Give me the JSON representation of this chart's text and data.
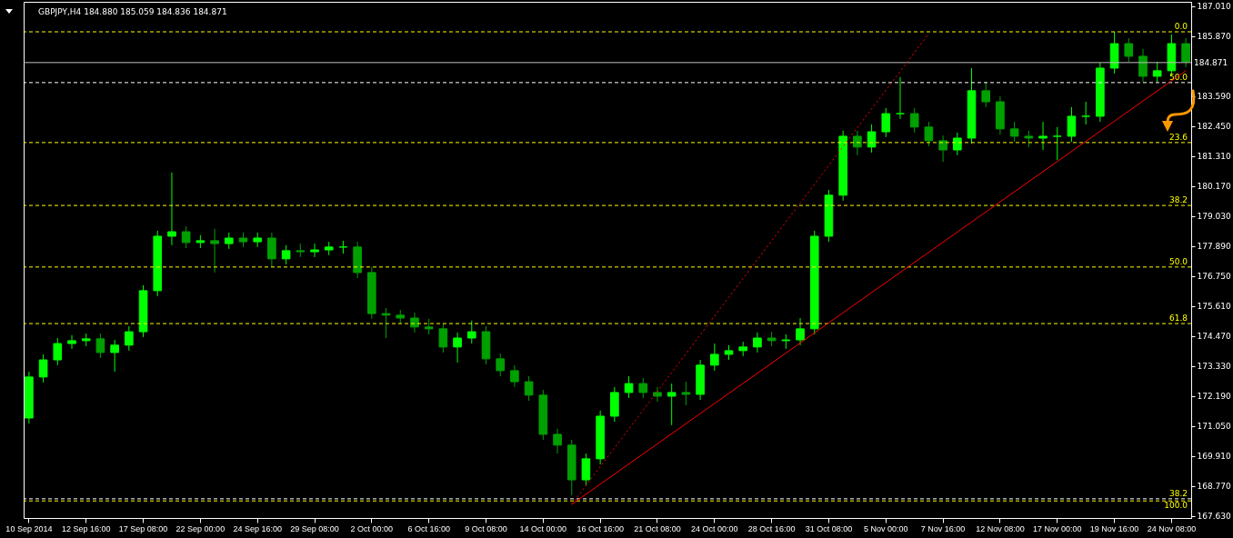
{
  "chart_data": {
    "type": "candlestick",
    "title": "GBPJPY,H4  184.880 185.059 184.836 184.871",
    "colors": [
      "#00ff00",
      "#00ff00",
      "#00ff00",
      "#00ff00",
      "#00ff00",
      "#00a000",
      "#00ff00",
      "#00ff00",
      "#00ff00",
      "#00ff00",
      "#00ff00",
      "#00a000",
      "#00ff00",
      "#00a000",
      "#00ff00",
      "#00a000",
      "#00ff00",
      "#00a000",
      "#00ff00",
      "#00a000",
      "#00ff00",
      "#00ff00",
      "#00ff00",
      "#00a000",
      "#00a000",
      "#00a000",
      "#00a000",
      "#00a000",
      "#00a000",
      "#00a000",
      "#00ff00",
      "#00ff00",
      "#00a000",
      "#00a000",
      "#00a000",
      "#00a000",
      "#00a000",
      "#00a000",
      "#00a000",
      "#00ff00",
      "#00ff00",
      "#00ff00",
      "#00ff00",
      "#00a000",
      "#00a000",
      "#00ff00",
      "#00a000",
      "#00ff00",
      "#00ff00",
      "#00ff00",
      "#00ff00",
      "#00ff00",
      "#00a000",
      "#00ff00",
      "#00ff00",
      "#00ff00",
      "#00ff00",
      "#00ff00",
      "#00a000",
      "#00ff00",
      "#00ff00",
      "#00ff00",
      "#00a000",
      "#00a000",
      "#00a000",
      "#00ff00",
      "#00ff00",
      "#00a000",
      "#00a000",
      "#00a000",
      "#00a000",
      "#00ff00",
      "#00ff00",
      "#00ff00",
      "#00ff00",
      "#00ff00",
      "#00ff00",
      "#00a000",
      "#00a000",
      "#00ff00",
      "#00ff00",
      "#00a000"
    ],
    "categories": [
      "10 Sep 2014",
      null,
      null,
      null,
      "12 Sep 16:00",
      null,
      null,
      null,
      "17 Sep 08:00",
      null,
      null,
      null,
      "22 Sep 00:00",
      null,
      null,
      null,
      "24 Sep 16:00",
      null,
      null,
      null,
      "29 Sep 08:00",
      null,
      null,
      null,
      "2 Oct 00:00",
      null,
      null,
      null,
      "6 Oct 16:00",
      null,
      null,
      null,
      "9 Oct 08:00",
      null,
      null,
      null,
      "14 Oct 00:00",
      null,
      null,
      null,
      "16 Oct 16:00",
      null,
      null,
      null,
      "21 Oct 08:00",
      null,
      null,
      null,
      "24 Oct 00:00",
      null,
      null,
      null,
      "28 Oct 16:00",
      null,
      null,
      null,
      "31 Oct 08:00",
      null,
      null,
      null,
      "5 Nov 00:00",
      null,
      null,
      null,
      "7 Nov 16:00",
      null,
      null,
      null,
      "12 Nov 08:00",
      null,
      null,
      null,
      "17 Nov 00:00",
      null,
      null,
      null,
      "19 Nov 16:00",
      null,
      null,
      null,
      "24 Nov 08:00",
      null
    ],
    "ohlc": [
      [
        171.36,
        173.12,
        171.15,
        172.92
      ],
      [
        172.92,
        173.78,
        172.71,
        173.57
      ],
      [
        173.57,
        174.4,
        173.37,
        174.19
      ],
      [
        174.19,
        174.51,
        173.99,
        174.3
      ],
      [
        174.3,
        174.57,
        174.09,
        174.37
      ],
      [
        174.37,
        174.57,
        173.64,
        173.85
      ],
      [
        173.85,
        174.33,
        173.12,
        174.13
      ],
      [
        174.13,
        174.85,
        173.92,
        174.64
      ],
      [
        174.64,
        176.41,
        174.44,
        176.2
      ],
      [
        176.2,
        178.48,
        175.99,
        178.27
      ],
      [
        178.27,
        180.69,
        177.93,
        178.44
      ],
      [
        178.44,
        178.65,
        177.82,
        178.03
      ],
      [
        178.03,
        178.31,
        177.82,
        178.1
      ],
      [
        178.1,
        178.55,
        176.89,
        177.99
      ],
      [
        177.99,
        178.41,
        177.79,
        178.2
      ],
      [
        178.2,
        178.41,
        177.86,
        178.06
      ],
      [
        178.06,
        178.41,
        177.86,
        178.2
      ],
      [
        178.2,
        178.41,
        177.1,
        177.41
      ],
      [
        177.41,
        177.93,
        177.2,
        177.72
      ],
      [
        177.72,
        177.99,
        177.48,
        177.68
      ],
      [
        177.68,
        177.99,
        177.48,
        177.75
      ],
      [
        177.75,
        178.06,
        177.55,
        177.86
      ],
      [
        177.86,
        178.1,
        177.61,
        177.86
      ],
      [
        177.86,
        178.06,
        176.68,
        176.89
      ],
      [
        176.89,
        177.1,
        175.13,
        175.33
      ],
      [
        175.33,
        175.54,
        174.4,
        175.27
      ],
      [
        175.27,
        175.47,
        174.95,
        175.16
      ],
      [
        175.16,
        175.37,
        174.61,
        174.82
      ],
      [
        174.82,
        175.13,
        174.54,
        174.75
      ],
      [
        174.75,
        174.95,
        173.85,
        174.06
      ],
      [
        174.06,
        174.61,
        173.47,
        174.4
      ],
      [
        174.4,
        175.06,
        174.19,
        174.64
      ],
      [
        174.64,
        174.85,
        173.4,
        173.61
      ],
      [
        173.61,
        173.81,
        172.95,
        173.16
      ],
      [
        173.16,
        173.37,
        172.54,
        172.74
      ],
      [
        172.74,
        172.95,
        172.02,
        172.23
      ],
      [
        172.23,
        172.43,
        170.53,
        170.74
      ],
      [
        170.74,
        170.95,
        170.01,
        170.33
      ],
      [
        170.33,
        170.53,
        168.43,
        169.01
      ],
      [
        169.01,
        170.01,
        168.81,
        169.81
      ],
      [
        169.81,
        171.64,
        169.6,
        171.43
      ],
      [
        171.43,
        172.54,
        171.22,
        172.33
      ],
      [
        172.33,
        172.95,
        172.12,
        172.67
      ],
      [
        172.67,
        172.88,
        172.12,
        172.33
      ],
      [
        172.33,
        172.54,
        171.98,
        172.19
      ],
      [
        172.19,
        172.67,
        171.09,
        172.33
      ],
      [
        172.33,
        172.74,
        171.85,
        172.26
      ],
      [
        172.26,
        173.57,
        172.05,
        173.37
      ],
      [
        173.37,
        174.19,
        173.16,
        173.78
      ],
      [
        173.78,
        174.13,
        173.57,
        173.92
      ],
      [
        173.92,
        174.26,
        173.71,
        174.06
      ],
      [
        174.06,
        174.61,
        173.85,
        174.4
      ],
      [
        174.4,
        174.64,
        174.09,
        174.3
      ],
      [
        174.3,
        174.54,
        173.99,
        174.33
      ],
      [
        174.33,
        175.16,
        174.13,
        174.75
      ],
      [
        174.75,
        178.48,
        174.54,
        178.27
      ],
      [
        178.27,
        180.03,
        178.06,
        179.83
      ],
      [
        179.83,
        182.28,
        179.62,
        182.07
      ],
      [
        182.07,
        182.28,
        181.35,
        181.66
      ],
      [
        181.66,
        182.52,
        181.45,
        182.24
      ],
      [
        182.24,
        183.14,
        182.04,
        182.93
      ],
      [
        182.93,
        184.32,
        182.73,
        182.93
      ],
      [
        182.93,
        183.14,
        182.21,
        182.42
      ],
      [
        182.42,
        182.62,
        181.69,
        181.9
      ],
      [
        181.9,
        182.1,
        181.1,
        181.55
      ],
      [
        181.55,
        182.21,
        181.35,
        182.0
      ],
      [
        182.0,
        184.66,
        181.79,
        183.8
      ],
      [
        183.8,
        184.14,
        183.18,
        183.38
      ],
      [
        183.38,
        183.59,
        182.14,
        182.35
      ],
      [
        182.35,
        182.62,
        181.86,
        182.07
      ],
      [
        182.07,
        182.28,
        181.66,
        182.0
      ],
      [
        182.0,
        182.62,
        181.55,
        182.07
      ],
      [
        182.07,
        182.42,
        181.17,
        182.07
      ],
      [
        182.07,
        183.18,
        181.86,
        182.83
      ],
      [
        182.83,
        183.38,
        182.52,
        182.83
      ],
      [
        182.83,
        184.87,
        182.62,
        184.66
      ],
      [
        184.66,
        186.04,
        184.45,
        185.59
      ],
      [
        185.59,
        185.8,
        184.9,
        185.11
      ],
      [
        185.11,
        185.39,
        184.14,
        184.35
      ],
      [
        184.35,
        184.9,
        184.14,
        184.56
      ],
      [
        184.56,
        185.94,
        184.35,
        185.59
      ],
      [
        185.59,
        185.8,
        184.7,
        184.9
      ]
    ],
    "series": [
      {
        "type": "line",
        "color": "#ff0000",
        "line_style": "solid",
        "values": [
          null,
          null,
          null,
          null,
          null,
          null,
          null,
          null,
          null,
          null,
          null,
          null,
          null,
          null,
          null,
          null,
          null,
          null,
          null,
          null,
          null,
          null,
          null,
          null,
          null,
          null,
          null,
          null,
          null,
          null,
          null,
          null,
          null,
          null,
          null,
          null,
          null,
          null,
          168.08,
          null,
          null,
          null,
          null,
          null,
          null,
          null,
          null,
          null,
          null,
          null,
          null,
          null,
          null,
          null,
          null,
          null,
          null,
          null,
          null,
          null,
          null,
          null,
          null,
          null,
          null,
          null,
          null,
          null,
          null,
          null,
          null,
          null,
          null,
          null,
          null,
          null,
          null,
          null,
          null,
          null,
          null,
          184.56
        ]
      },
      {
        "type": "line",
        "color": "#ff0000",
        "line_style": "dotted",
        "values": [
          null,
          null,
          null,
          null,
          null,
          null,
          null,
          null,
          null,
          null,
          null,
          null,
          null,
          null,
          null,
          null,
          null,
          null,
          null,
          null,
          null,
          null,
          null,
          null,
          null,
          null,
          null,
          null,
          null,
          null,
          null,
          null,
          null,
          null,
          null,
          null,
          null,
          null,
          168.08,
          null,
          null,
          null,
          null,
          null,
          null,
          null,
          null,
          null,
          null,
          null,
          null,
          null,
          null,
          null,
          null,
          null,
          null,
          null,
          null,
          null,
          null,
          null,
          null,
          185.97,
          null,
          null,
          null,
          null,
          null,
          null,
          null,
          null,
          null,
          null,
          null,
          null,
          null,
          null,
          null,
          null,
          null,
          null
        ]
      }
    ],
    "ylim": [
      167.56,
      187.18
    ],
    "yticks": [
      {
        "value": 167.63,
        "label": "167.630"
      },
      {
        "value": 168.77,
        "label": "168.770"
      },
      {
        "value": 169.91,
        "label": "169.910"
      },
      {
        "value": 171.05,
        "label": "171.050"
      },
      {
        "value": 172.19,
        "label": "172.190"
      },
      {
        "value": 173.33,
        "label": "173.330"
      },
      {
        "value": 174.47,
        "label": "174.470"
      },
      {
        "value": 175.61,
        "label": "175.610"
      },
      {
        "value": 176.75,
        "label": "176.750"
      },
      {
        "value": 177.89,
        "label": "177.890"
      },
      {
        "value": 179.03,
        "label": "179.030"
      },
      {
        "value": 180.17,
        "label": "180.170"
      },
      {
        "value": 181.31,
        "label": "181.310"
      },
      {
        "value": 182.45,
        "label": "182.450"
      },
      {
        "value": 183.59,
        "label": "183.590"
      },
      {
        "value": 185.87,
        "label": "185.870"
      },
      {
        "value": 187.01,
        "label": "187.010"
      }
    ],
    "ref_lines": [
      {
        "axis": "y",
        "value": 186.04,
        "color": "#ffff00",
        "line_style": "dashed"
      },
      {
        "axis": "y",
        "value": 184.871,
        "label": "184.871",
        "color": "#c0c0c0",
        "line_style": "solid"
      },
      {
        "axis": "y",
        "value": 184.11,
        "color": "#ffffff",
        "line_style": "dashed"
      },
      {
        "axis": "y",
        "value": 181.83,
        "color": "#ffff00",
        "line_style": "dashed"
      },
      {
        "axis": "y",
        "value": 179.44,
        "color": "#ffff00",
        "line_style": "dashed"
      },
      {
        "axis": "y",
        "value": 177.1,
        "color": "#ffff00",
        "line_style": "dashed"
      },
      {
        "axis": "y",
        "value": 174.95,
        "color": "#ffff00",
        "line_style": "dashed"
      },
      {
        "axis": "y",
        "value": 168.29,
        "color": "#ffffff",
        "line_style": "dashed"
      },
      {
        "axis": "y",
        "value": 168.21,
        "color": "#ffff00",
        "line_style": "dashed"
      }
    ],
    "annotations": [
      {
        "text": "0.0",
        "y": 186.04
      },
      {
        "text": "50.0",
        "y": 184.11
      },
      {
        "text": "23.6",
        "y": 181.83
      },
      {
        "text": "38.2",
        "y": 179.44
      },
      {
        "text": "50.0",
        "y": 177.1
      },
      {
        "text": "61.8",
        "y": 174.95
      },
      {
        "text": "38.2",
        "y": 168.29
      },
      {
        "text": "100.0",
        "y": 168.21
      }
    ]
  }
}
